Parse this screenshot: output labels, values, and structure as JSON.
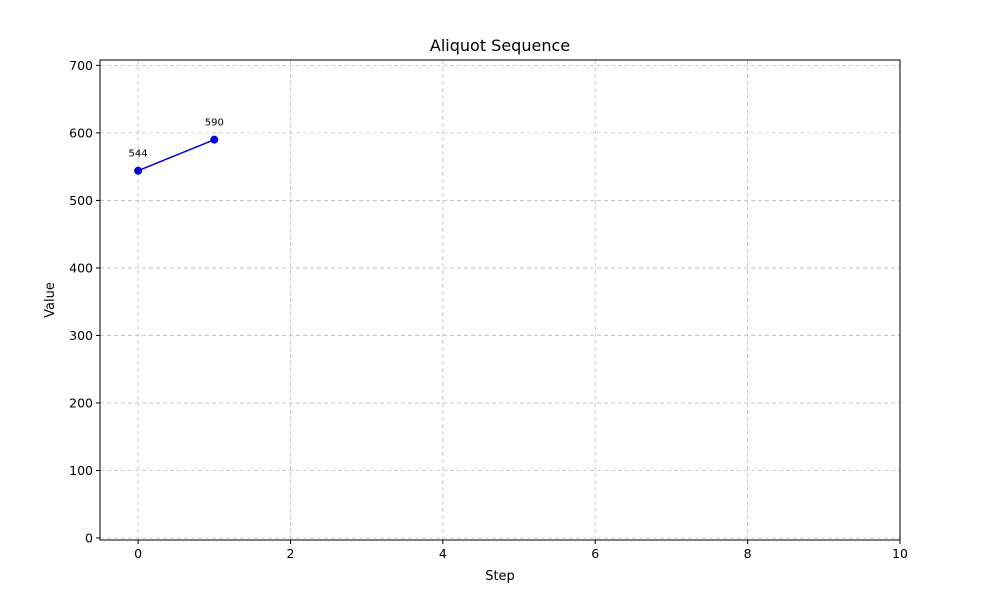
{
  "chart_data": {
    "type": "line",
    "title": "Aliquot Sequence",
    "xlabel": "Step",
    "ylabel": "Value",
    "xlim": [
      -0.5,
      10
    ],
    "ylim": [
      -3,
      708
    ],
    "xticks": [
      0,
      2,
      4,
      6,
      8,
      10
    ],
    "yticks": [
      0,
      100,
      200,
      300,
      400,
      500,
      600,
      700
    ],
    "grid": true,
    "series": [
      {
        "x": [
          0,
          1
        ],
        "y": [
          544,
          590
        ],
        "color": "#0000dd",
        "marker": "circle",
        "point_labels": [
          "544",
          "590"
        ]
      }
    ]
  }
}
